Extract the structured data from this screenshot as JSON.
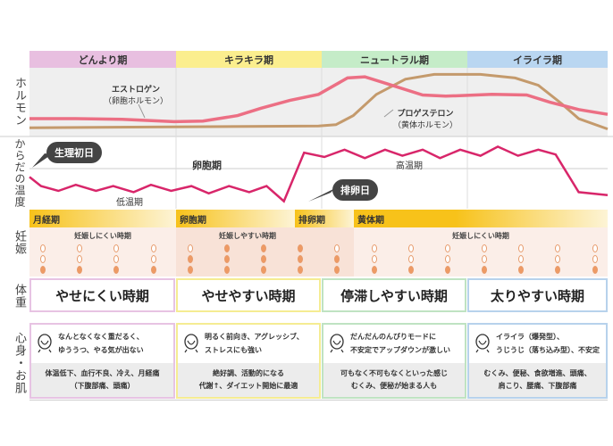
{
  "phases": [
    {
      "name": "どんより期",
      "color": "#e8bfe0",
      "border": "#e7c3e3"
    },
    {
      "name": "キラキラ期",
      "color": "#fbee8e",
      "border": "#f5ec92"
    },
    {
      "name": "ニュートラル期",
      "color": "#c5ecc8",
      "border": "#bfe3c2"
    },
    {
      "name": "イライラ期",
      "color": "#b9d6f1",
      "border": "#b7d2ec"
    }
  ],
  "row_labels": {
    "hormone": "ホルモン",
    "temperature": "からだの温度",
    "pregnancy": "妊娠",
    "weight": "体重",
    "mind": "心身・お肌"
  },
  "hormone": {
    "estrogen_label": "エストロゲン",
    "estrogen_sub": "（卵胞ホルモン）",
    "progesterone_label": "プロゲステロン",
    "progesterone_sub": "（黄体ホルモン）",
    "estrogen_color": "#ec6f84",
    "progesterone_color": "#c49a6c",
    "estrogen": [
      [
        0,
        0.25
      ],
      [
        0.08,
        0.25
      ],
      [
        0.16,
        0.24
      ],
      [
        0.25,
        0.2
      ],
      [
        0.3,
        0.21
      ],
      [
        0.36,
        0.3
      ],
      [
        0.4,
        0.42
      ],
      [
        0.45,
        0.55
      ],
      [
        0.5,
        0.65
      ],
      [
        0.55,
        0.92
      ],
      [
        0.58,
        0.94
      ],
      [
        0.62,
        0.82
      ],
      [
        0.68,
        0.64
      ],
      [
        0.72,
        0.62
      ],
      [
        0.8,
        0.65
      ],
      [
        0.86,
        0.64
      ],
      [
        0.9,
        0.52
      ],
      [
        0.95,
        0.4
      ],
      [
        1,
        0.32
      ]
    ],
    "progesterone": [
      [
        0,
        0.1
      ],
      [
        0.5,
        0.13
      ],
      [
        0.53,
        0.15
      ],
      [
        0.56,
        0.3
      ],
      [
        0.6,
        0.65
      ],
      [
        0.65,
        0.9
      ],
      [
        0.7,
        0.98
      ],
      [
        0.78,
        0.98
      ],
      [
        0.84,
        0.92
      ],
      [
        0.88,
        0.8
      ],
      [
        0.92,
        0.5
      ],
      [
        0.95,
        0.25
      ],
      [
        1,
        0.08
      ]
    ]
  },
  "temperature": {
    "color": "#d8266a",
    "first_day": "生理初日",
    "ovulation_day": "排卵日",
    "follicular": "卵胞期",
    "low": "低温期",
    "high": "高温期",
    "values": [
      [
        0,
        0.45
      ],
      [
        0.02,
        0.3
      ],
      [
        0.05,
        0.22
      ],
      [
        0.08,
        0.32
      ],
      [
        0.115,
        0.22
      ],
      [
        0.145,
        0.3
      ],
      [
        0.18,
        0.2
      ],
      [
        0.21,
        0.32
      ],
      [
        0.245,
        0.22
      ],
      [
        0.28,
        0.3
      ],
      [
        0.31,
        0.18
      ],
      [
        0.345,
        0.3
      ],
      [
        0.38,
        0.2
      ],
      [
        0.41,
        0.3
      ],
      [
        0.44,
        0.05
      ],
      [
        0.475,
        0.85
      ],
      [
        0.51,
        0.78
      ],
      [
        0.545,
        0.9
      ],
      [
        0.58,
        0.76
      ],
      [
        0.615,
        0.9
      ],
      [
        0.645,
        0.8
      ],
      [
        0.68,
        0.9
      ],
      [
        0.71,
        0.76
      ],
      [
        0.745,
        0.9
      ],
      [
        0.78,
        0.8
      ],
      [
        0.81,
        0.95
      ],
      [
        0.845,
        0.8
      ],
      [
        0.88,
        0.9
      ],
      [
        0.91,
        0.82
      ],
      [
        0.95,
        0.2
      ],
      [
        1,
        0.15
      ]
    ]
  },
  "pregnancy": {
    "bars": [
      "月経期",
      "卵胞期",
      "排卵期",
      "黄体期"
    ],
    "hard1": "妊娠しにくい時期",
    "easy": "妊娠しやすい時期",
    "hard2": "妊娠しにくい時期",
    "eggs_filled": [
      1,
      1,
      1,
      1,
      2,
      3,
      3,
      3,
      2,
      1,
      1,
      1,
      1,
      1,
      1,
      1
    ]
  },
  "weight": [
    "やせにくい時期",
    "やせやすい時期",
    "停滞しやすい時期",
    "太りやすい時期"
  ],
  "mind": [
    {
      "top": [
        "なんとなくなく重だるく、",
        "ゆううつ、やる気が出ない"
      ],
      "bottom": [
        "体温低下、血行不良、冷え、月経痛",
        "（下腹部痛、頭痛）"
      ]
    },
    {
      "top": [
        "明るく前向き、アグレッシブ、",
        "ストレスにも強い"
      ],
      "bottom": [
        "絶好調、活動的になる",
        "代謝↑、ダイエット開始に最適"
      ]
    },
    {
      "top": [
        "だんだんのんびりモードに",
        "不安定でアップダウンが激しい"
      ],
      "bottom": [
        "可もなく不可もなくといった感じ",
        "むくみ、便秘が始まる人も"
      ]
    },
    {
      "top": [
        "イライラ（爆発型）、",
        "うじうじ（落ち込み型）、不安定"
      ],
      "bottom": [
        "むくみ、便秘、食欲増進、頭痛、",
        "肩こり、腰痛、下腹部痛"
      ]
    }
  ]
}
